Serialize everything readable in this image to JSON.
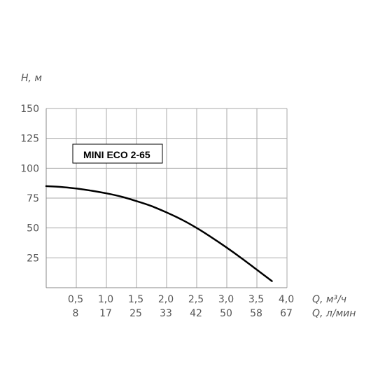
{
  "chart_data": {
    "type": "line",
    "title": "MINI ECO 2-65",
    "ylabel": "H, м",
    "xlabel_primary": "Q, м³/ч",
    "xlabel_secondary": "Q, л/мин",
    "ylim": [
      0,
      150
    ],
    "xlim": [
      0,
      4.0
    ],
    "grid": true,
    "y_ticks": [
      25,
      50,
      75,
      100,
      125,
      150
    ],
    "y_tick_labels": [
      "25",
      "50",
      "75",
      "100",
      "125",
      "150"
    ],
    "x_ticks": [
      0.5,
      1.0,
      1.5,
      2.0,
      2.5,
      3.0,
      3.5,
      4.0
    ],
    "x_tick_labels_primary": [
      "0,5",
      "1,0",
      "1,5",
      "2,0",
      "2,5",
      "3,0",
      "3,5",
      "4,0"
    ],
    "x_tick_labels_secondary": [
      "8",
      "17",
      "25",
      "33",
      "42",
      "50",
      "58",
      "67"
    ],
    "series": [
      {
        "x": [
          0,
          0.25,
          0.5,
          0.75,
          1.0,
          1.25,
          1.5,
          1.75,
          2.0,
          2.25,
          2.5,
          2.75,
          3.0,
          3.25,
          3.5,
          3.75
        ],
        "y": [
          85,
          84.3,
          83,
          81.2,
          79,
          76.2,
          72.5,
          68.3,
          63,
          57,
          50,
          42,
          33.5,
          24.5,
          15,
          5.5
        ]
      }
    ],
    "colors": {
      "grid": "#aaaaaa",
      "axis": "#888888",
      "curve": "#000000",
      "text": "#555555"
    }
  }
}
